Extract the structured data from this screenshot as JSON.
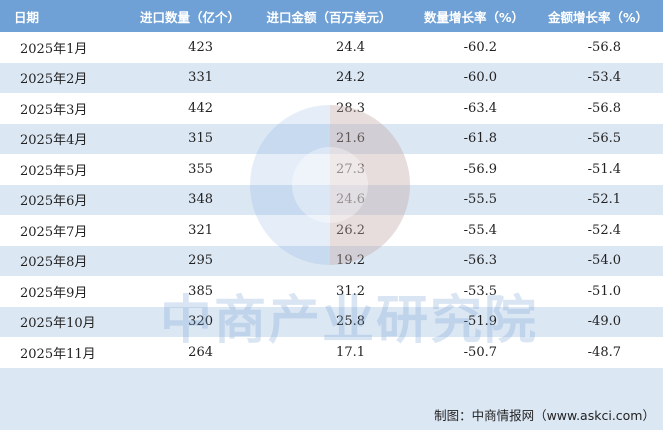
{
  "table": {
    "header": [
      "日期",
      "进口数量（亿个）",
      "进口金额（百万美元）",
      "数量增长率（%）",
      "金额增长率（%）"
    ],
    "rows": [
      [
        "2025年1月",
        "423",
        "24.4",
        "-60.2",
        "-56.8"
      ],
      [
        "2025年2月",
        "331",
        "24.2",
        "-60.0",
        "-53.4"
      ],
      [
        "2025年3月",
        "442",
        "28.3",
        "-63.4",
        "-56.8"
      ],
      [
        "2025年4月",
        "315",
        "21.6",
        "-61.8",
        "-56.5"
      ],
      [
        "2025年5月",
        "355",
        "27.3",
        "-56.9",
        "-51.4"
      ],
      [
        "2025年6月",
        "348",
        "24.6",
        "-55.5",
        "-52.1"
      ],
      [
        "2025年7月",
        "321",
        "26.2",
        "-55.4",
        "-52.4"
      ],
      [
        "2025年8月",
        "295",
        "19.2",
        "-56.3",
        "-54.0"
      ],
      [
        "2025年9月",
        "385",
        "31.2",
        "-53.5",
        "-51.0"
      ],
      [
        "2025年10月",
        "320",
        "25.8",
        "-51.9",
        "-49.0"
      ],
      [
        "2025年11月",
        "264",
        "17.1",
        "-50.7",
        "-48.7"
      ]
    ]
  },
  "watermark": "中商产业研究院",
  "source": "制图：中商情报网（www.askci.com）"
}
